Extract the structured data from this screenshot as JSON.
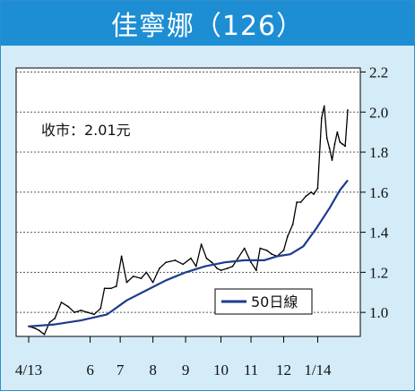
{
  "chart_data": {
    "type": "line",
    "title": "佳寧娜（126）",
    "annotation": {
      "label": "收市：2.01元"
    },
    "ylim": [
      0.88,
      2.22
    ],
    "yticks": [
      "2.2",
      "2.0",
      "1.8",
      "1.6",
      "1.4",
      "1.2",
      "1.0"
    ],
    "ytick_values": [
      2.2,
      2.0,
      1.8,
      1.6,
      1.4,
      1.2,
      1.0
    ],
    "grid": true,
    "xtick_labels": [
      "4/13",
      "6",
      "7",
      "8",
      "9",
      "10",
      "11",
      "12",
      "1/14"
    ],
    "xtick_index": [
      0,
      47,
      70,
      95,
      120,
      147,
      170,
      195,
      221
    ],
    "x_count": 245,
    "legend": {
      "position": "bottom-right",
      "entries": [
        {
          "name": "50日線",
          "color": "#1c3c8c"
        }
      ]
    },
    "series": [
      {
        "name": "price",
        "color": "#000000",
        "points": [
          [
            0,
            0.93
          ],
          [
            5,
            0.92
          ],
          [
            8,
            0.91
          ],
          [
            12,
            0.89
          ],
          [
            16,
            0.95
          ],
          [
            20,
            0.97
          ],
          [
            25,
            1.05
          ],
          [
            30,
            1.03
          ],
          [
            35,
            1.0
          ],
          [
            40,
            1.01
          ],
          [
            45,
            1.0
          ],
          [
            50,
            0.99
          ],
          [
            55,
            1.02
          ],
          [
            58,
            1.12
          ],
          [
            63,
            1.12
          ],
          [
            67,
            1.13
          ],
          [
            71,
            1.28
          ],
          [
            75,
            1.15
          ],
          [
            80,
            1.18
          ],
          [
            86,
            1.17
          ],
          [
            90,
            1.2
          ],
          [
            95,
            1.15
          ],
          [
            100,
            1.22
          ],
          [
            105,
            1.25
          ],
          [
            112,
            1.26
          ],
          [
            118,
            1.24
          ],
          [
            124,
            1.27
          ],
          [
            128,
            1.23
          ],
          [
            132,
            1.34
          ],
          [
            136,
            1.27
          ],
          [
            140,
            1.25
          ],
          [
            144,
            1.22
          ],
          [
            147,
            1.21
          ],
          [
            152,
            1.22
          ],
          [
            156,
            1.23
          ],
          [
            160,
            1.27
          ],
          [
            165,
            1.32
          ],
          [
            170,
            1.25
          ],
          [
            174,
            1.21
          ],
          [
            177,
            1.32
          ],
          [
            182,
            1.31
          ],
          [
            186,
            1.29
          ],
          [
            190,
            1.28
          ],
          [
            195,
            1.31
          ],
          [
            198,
            1.38
          ],
          [
            202,
            1.44
          ],
          [
            205,
            1.55
          ],
          [
            208,
            1.55
          ],
          [
            212,
            1.58
          ],
          [
            216,
            1.6
          ],
          [
            218,
            1.59
          ],
          [
            221,
            1.62
          ],
          [
            224,
            1.97
          ],
          [
            226,
            2.03
          ],
          [
            228,
            1.87
          ],
          [
            230,
            1.82
          ],
          [
            232,
            1.76
          ],
          [
            234,
            1.84
          ],
          [
            236,
            1.9
          ],
          [
            238,
            1.85
          ],
          [
            240,
            1.84
          ],
          [
            242,
            1.83
          ],
          [
            244,
            2.01
          ]
        ]
      },
      {
        "name": "50日線",
        "color": "#1c3c8c",
        "points": [
          [
            0,
            0.93
          ],
          [
            20,
            0.94
          ],
          [
            40,
            0.96
          ],
          [
            60,
            0.99
          ],
          [
            75,
            1.06
          ],
          [
            90,
            1.11
          ],
          [
            105,
            1.16
          ],
          [
            120,
            1.2
          ],
          [
            135,
            1.23
          ],
          [
            150,
            1.25
          ],
          [
            165,
            1.26
          ],
          [
            180,
            1.26
          ],
          [
            190,
            1.28
          ],
          [
            200,
            1.29
          ],
          [
            210,
            1.33
          ],
          [
            220,
            1.42
          ],
          [
            230,
            1.52
          ],
          [
            238,
            1.61
          ],
          [
            244,
            1.66
          ]
        ]
      }
    ]
  }
}
